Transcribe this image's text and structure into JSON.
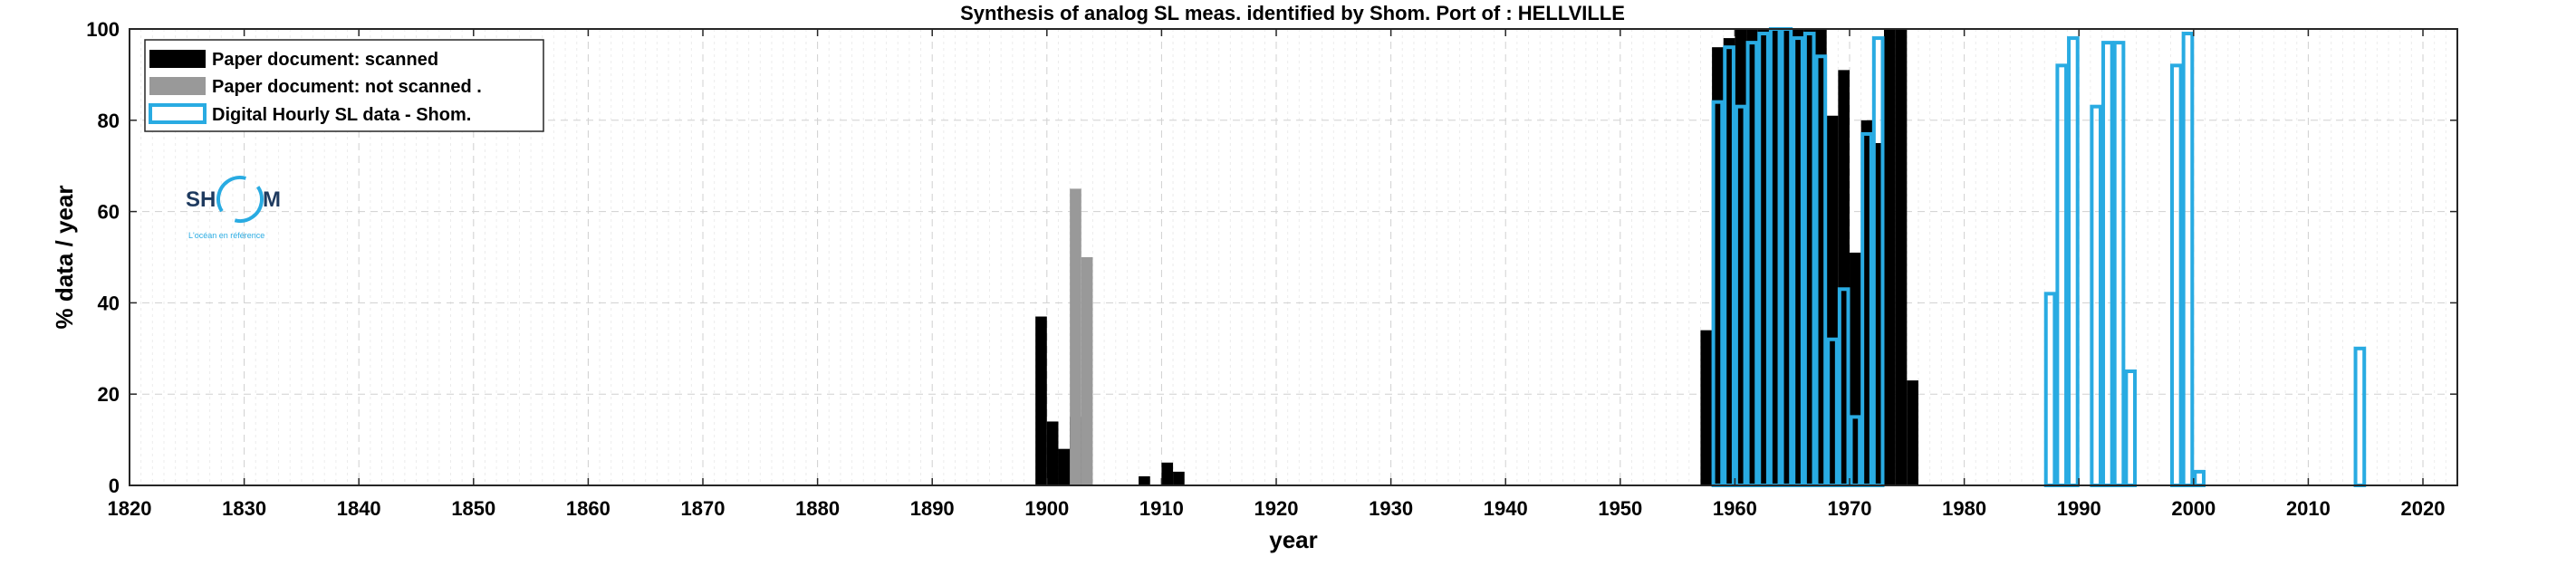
{
  "chart_data": {
    "type": "bar",
    "title": "Synthesis of analog SL meas. identified by Shom. Port of : HELLVILLE",
    "xlabel": "year",
    "ylabel": "% data / year",
    "xlim": [
      1820,
      2023
    ],
    "ylim": [
      0,
      100
    ],
    "xticks": [
      1820,
      1830,
      1840,
      1850,
      1860,
      1870,
      1880,
      1890,
      1900,
      1910,
      1920,
      1930,
      1940,
      1950,
      1960,
      1970,
      1980,
      1990,
      2000,
      2010,
      2020
    ],
    "yticks": [
      0,
      20,
      40,
      60,
      80,
      100
    ],
    "grid": true,
    "legend_position": "top-left",
    "series": [
      {
        "name": "Paper document: scanned",
        "style": "filled",
        "color": "#000000",
        "points": [
          {
            "x": 1899,
            "y": 37
          },
          {
            "x": 1900,
            "y": 14
          },
          {
            "x": 1901,
            "y": 8
          },
          {
            "x": 1902,
            "y": 15
          },
          {
            "x": 1908,
            "y": 2
          },
          {
            "x": 1910,
            "y": 5
          },
          {
            "x": 1911,
            "y": 3
          },
          {
            "x": 1957,
            "y": 34
          },
          {
            "x": 1958,
            "y": 96
          },
          {
            "x": 1959,
            "y": 98
          },
          {
            "x": 1960,
            "y": 100
          },
          {
            "x": 1961,
            "y": 100
          },
          {
            "x": 1962,
            "y": 100
          },
          {
            "x": 1963,
            "y": 100
          },
          {
            "x": 1964,
            "y": 100
          },
          {
            "x": 1965,
            "y": 100
          },
          {
            "x": 1966,
            "y": 100
          },
          {
            "x": 1967,
            "y": 100
          },
          {
            "x": 1968,
            "y": 81
          },
          {
            "x": 1969,
            "y": 91
          },
          {
            "x": 1970,
            "y": 51
          },
          {
            "x": 1971,
            "y": 80
          },
          {
            "x": 1972,
            "y": 75
          },
          {
            "x": 1973,
            "y": 100
          },
          {
            "x": 1974,
            "y": 100
          },
          {
            "x": 1975,
            "y": 23
          }
        ]
      },
      {
        "name": "Paper document: not scanned",
        "style": "filled",
        "color": "#999999",
        "points": [
          {
            "x": 1902,
            "y": 65
          },
          {
            "x": 1903,
            "y": 50
          }
        ]
      },
      {
        "name": "Digital Hourly SL data - Shom.",
        "style": "outline",
        "color": "#29abe2",
        "points": [
          {
            "x": 1958,
            "y": 84
          },
          {
            "x": 1959,
            "y": 96
          },
          {
            "x": 1960,
            "y": 83
          },
          {
            "x": 1961,
            "y": 97
          },
          {
            "x": 1962,
            "y": 99
          },
          {
            "x": 1963,
            "y": 100
          },
          {
            "x": 1964,
            "y": 100
          },
          {
            "x": 1965,
            "y": 98
          },
          {
            "x": 1966,
            "y": 99
          },
          {
            "x": 1967,
            "y": 94
          },
          {
            "x": 1968,
            "y": 32
          },
          {
            "x": 1969,
            "y": 43
          },
          {
            "x": 1970,
            "y": 15
          },
          {
            "x": 1971,
            "y": 77
          },
          {
            "x": 1972,
            "y": 98
          },
          {
            "x": 1987,
            "y": 42
          },
          {
            "x": 1988,
            "y": 92
          },
          {
            "x": 1989,
            "y": 98
          },
          {
            "x": 1991,
            "y": 83
          },
          {
            "x": 1992,
            "y": 97
          },
          {
            "x": 1993,
            "y": 97
          },
          {
            "x": 1994,
            "y": 25
          },
          {
            "x": 1998,
            "y": 92
          },
          {
            "x": 1999,
            "y": 99
          },
          {
            "x": 2000,
            "y": 3
          },
          {
            "x": 2014,
            "y": 30
          }
        ]
      }
    ]
  },
  "legend_items": [
    {
      "label": "Paper document: scanned",
      "color": "#000000",
      "style": "filled"
    },
    {
      "label": "Paper document: not scanned   .",
      "color": "#999999",
      "style": "filled"
    },
    {
      "label": "Digital Hourly SL data - Shom.",
      "color": "#29abe2",
      "style": "outline"
    }
  ],
  "logo": {
    "text_left": "SH",
    "text_right": "M",
    "tagline": "L'océan en référence",
    "color": "#1e3a5f",
    "accent_color": "#29abe2"
  }
}
